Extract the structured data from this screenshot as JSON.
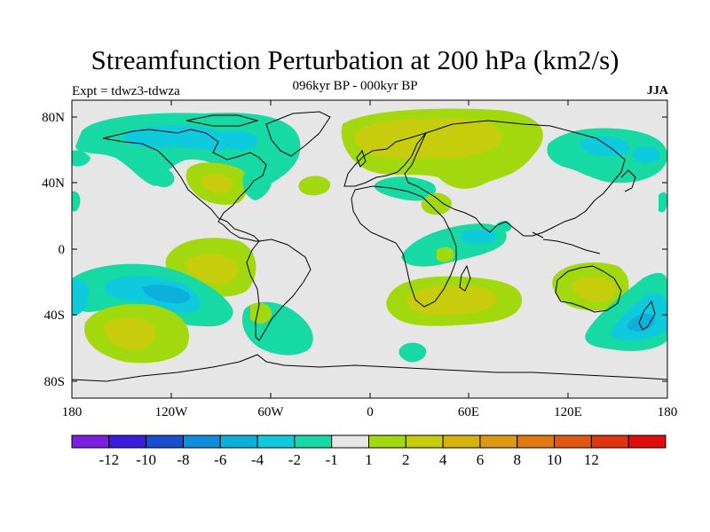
{
  "title": "Streamfunction Perturbation at 200 hPa (km2/s)",
  "subtitle": "096kyr BP - 000kyr BP",
  "left_label": "Expt = tdwz3-tdwza",
  "right_label": "JJA",
  "y_ticks": [
    "80N",
    "40N",
    "0",
    "40S",
    "80S"
  ],
  "x_ticks": [
    "180",
    "120W",
    "60W",
    "0",
    "60E",
    "120E",
    "180"
  ],
  "colorbar": {
    "colors": [
      "#7d1de0",
      "#3a1cdb",
      "#1a4ecf",
      "#118bdc",
      "#0bb1da",
      "#0fcadd",
      "#17d9a4",
      "#e6e6e6",
      "#a2d80e",
      "#c7cd0c",
      "#d8b20b",
      "#dd9911",
      "#e0770f",
      "#e25712",
      "#e03513",
      "#e00d0d"
    ],
    "labels": [
      "-12",
      "-10",
      "-8",
      "-6",
      "-4",
      "-2",
      "-1",
      "1",
      "2",
      "4",
      "6",
      "8",
      "10",
      "12"
    ]
  },
  "colors": {
    "background": "#e6e6e6",
    "coast": "#000000"
  }
}
